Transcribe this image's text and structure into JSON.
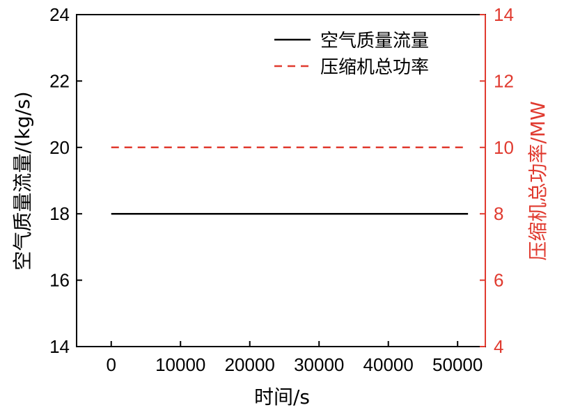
{
  "chart_data": {
    "type": "line",
    "xlabel": "时间/s",
    "ylabel_left": "空气质量流量/(kg/s)",
    "ylabel_right": "压缩机总功率/MW",
    "xlim": [
      -5000,
      54000
    ],
    "ylim_left": [
      14,
      24
    ],
    "ylim_right": [
      4,
      14
    ],
    "x_ticks": [
      0,
      10000,
      20000,
      30000,
      40000,
      50000
    ],
    "y_left_ticks": [
      14,
      16,
      18,
      20,
      22,
      24
    ],
    "y_right_ticks": [
      4,
      6,
      8,
      10,
      12,
      14
    ],
    "grid": false,
    "legend_position": "top-right",
    "series": [
      {
        "name": "空气质量流量",
        "axis": "left",
        "style": "solid",
        "color": "#000000",
        "x": [
          0,
          51500
        ],
        "y": [
          18,
          18
        ]
      },
      {
        "name": "压缩机总功率",
        "axis": "right",
        "style": "dashed",
        "color": "#e03a2f",
        "x": [
          0,
          51500
        ],
        "y": [
          10,
          10
        ]
      }
    ]
  }
}
